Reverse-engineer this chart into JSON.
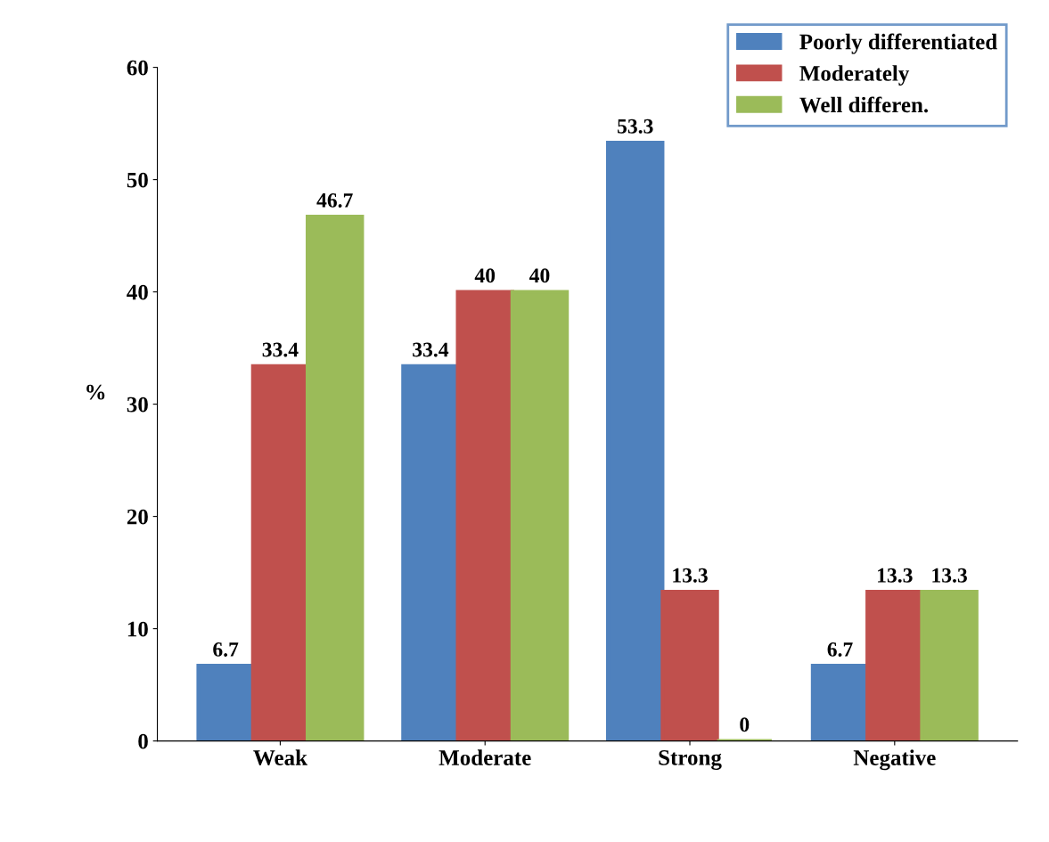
{
  "chart_data": {
    "type": "bar",
    "ylabel": "%",
    "categories": [
      "Weak",
      "Moderate",
      "Strong",
      "Negative"
    ],
    "series": [
      {
        "name": "Poorly differentiated",
        "color": "#4f81bd",
        "values": [
          6.7,
          33.4,
          53.3,
          6.7
        ]
      },
      {
        "name": "Moderately",
        "color": "#c0504d",
        "values": [
          33.4,
          40,
          13.3,
          13.3
        ]
      },
      {
        "name": "Well differen.",
        "color": "#9bbb59",
        "values": [
          46.7,
          40,
          0,
          13.3
        ]
      }
    ],
    "ylim": [
      0,
      60
    ],
    "yticks": [
      0,
      10,
      20,
      30,
      40,
      50,
      60
    ],
    "data_labels": true,
    "grid": false,
    "legend": "top right"
  }
}
